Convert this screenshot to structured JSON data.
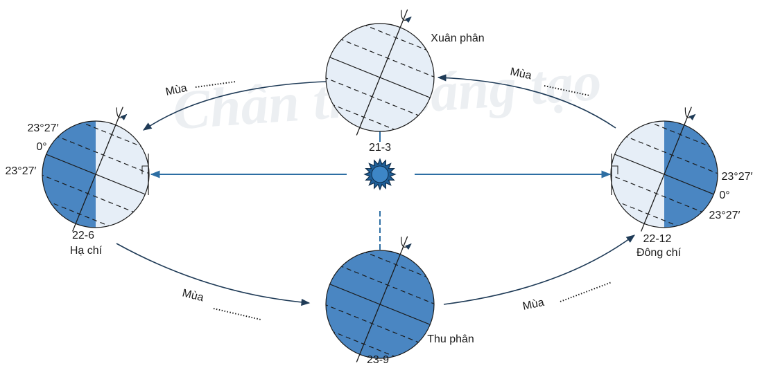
{
  "watermark": "Chân trời sáng tạo",
  "nodes": [
    {
      "date": "21-3",
      "label": "Xuân phân"
    },
    {
      "date": "22-6",
      "label": "Hạ chí",
      "latitudes": [
        "23°27′",
        "0°",
        "23°27′"
      ]
    },
    {
      "date": "23-9",
      "label": "Thu phân"
    },
    {
      "date": "22-12",
      "label": "Đông chí",
      "latitudes": [
        "23°27′",
        "0°",
        "23°27′"
      ]
    }
  ],
  "seasons": [
    "Mùa",
    "Mùa",
    "Mùa",
    "Mùa"
  ]
}
